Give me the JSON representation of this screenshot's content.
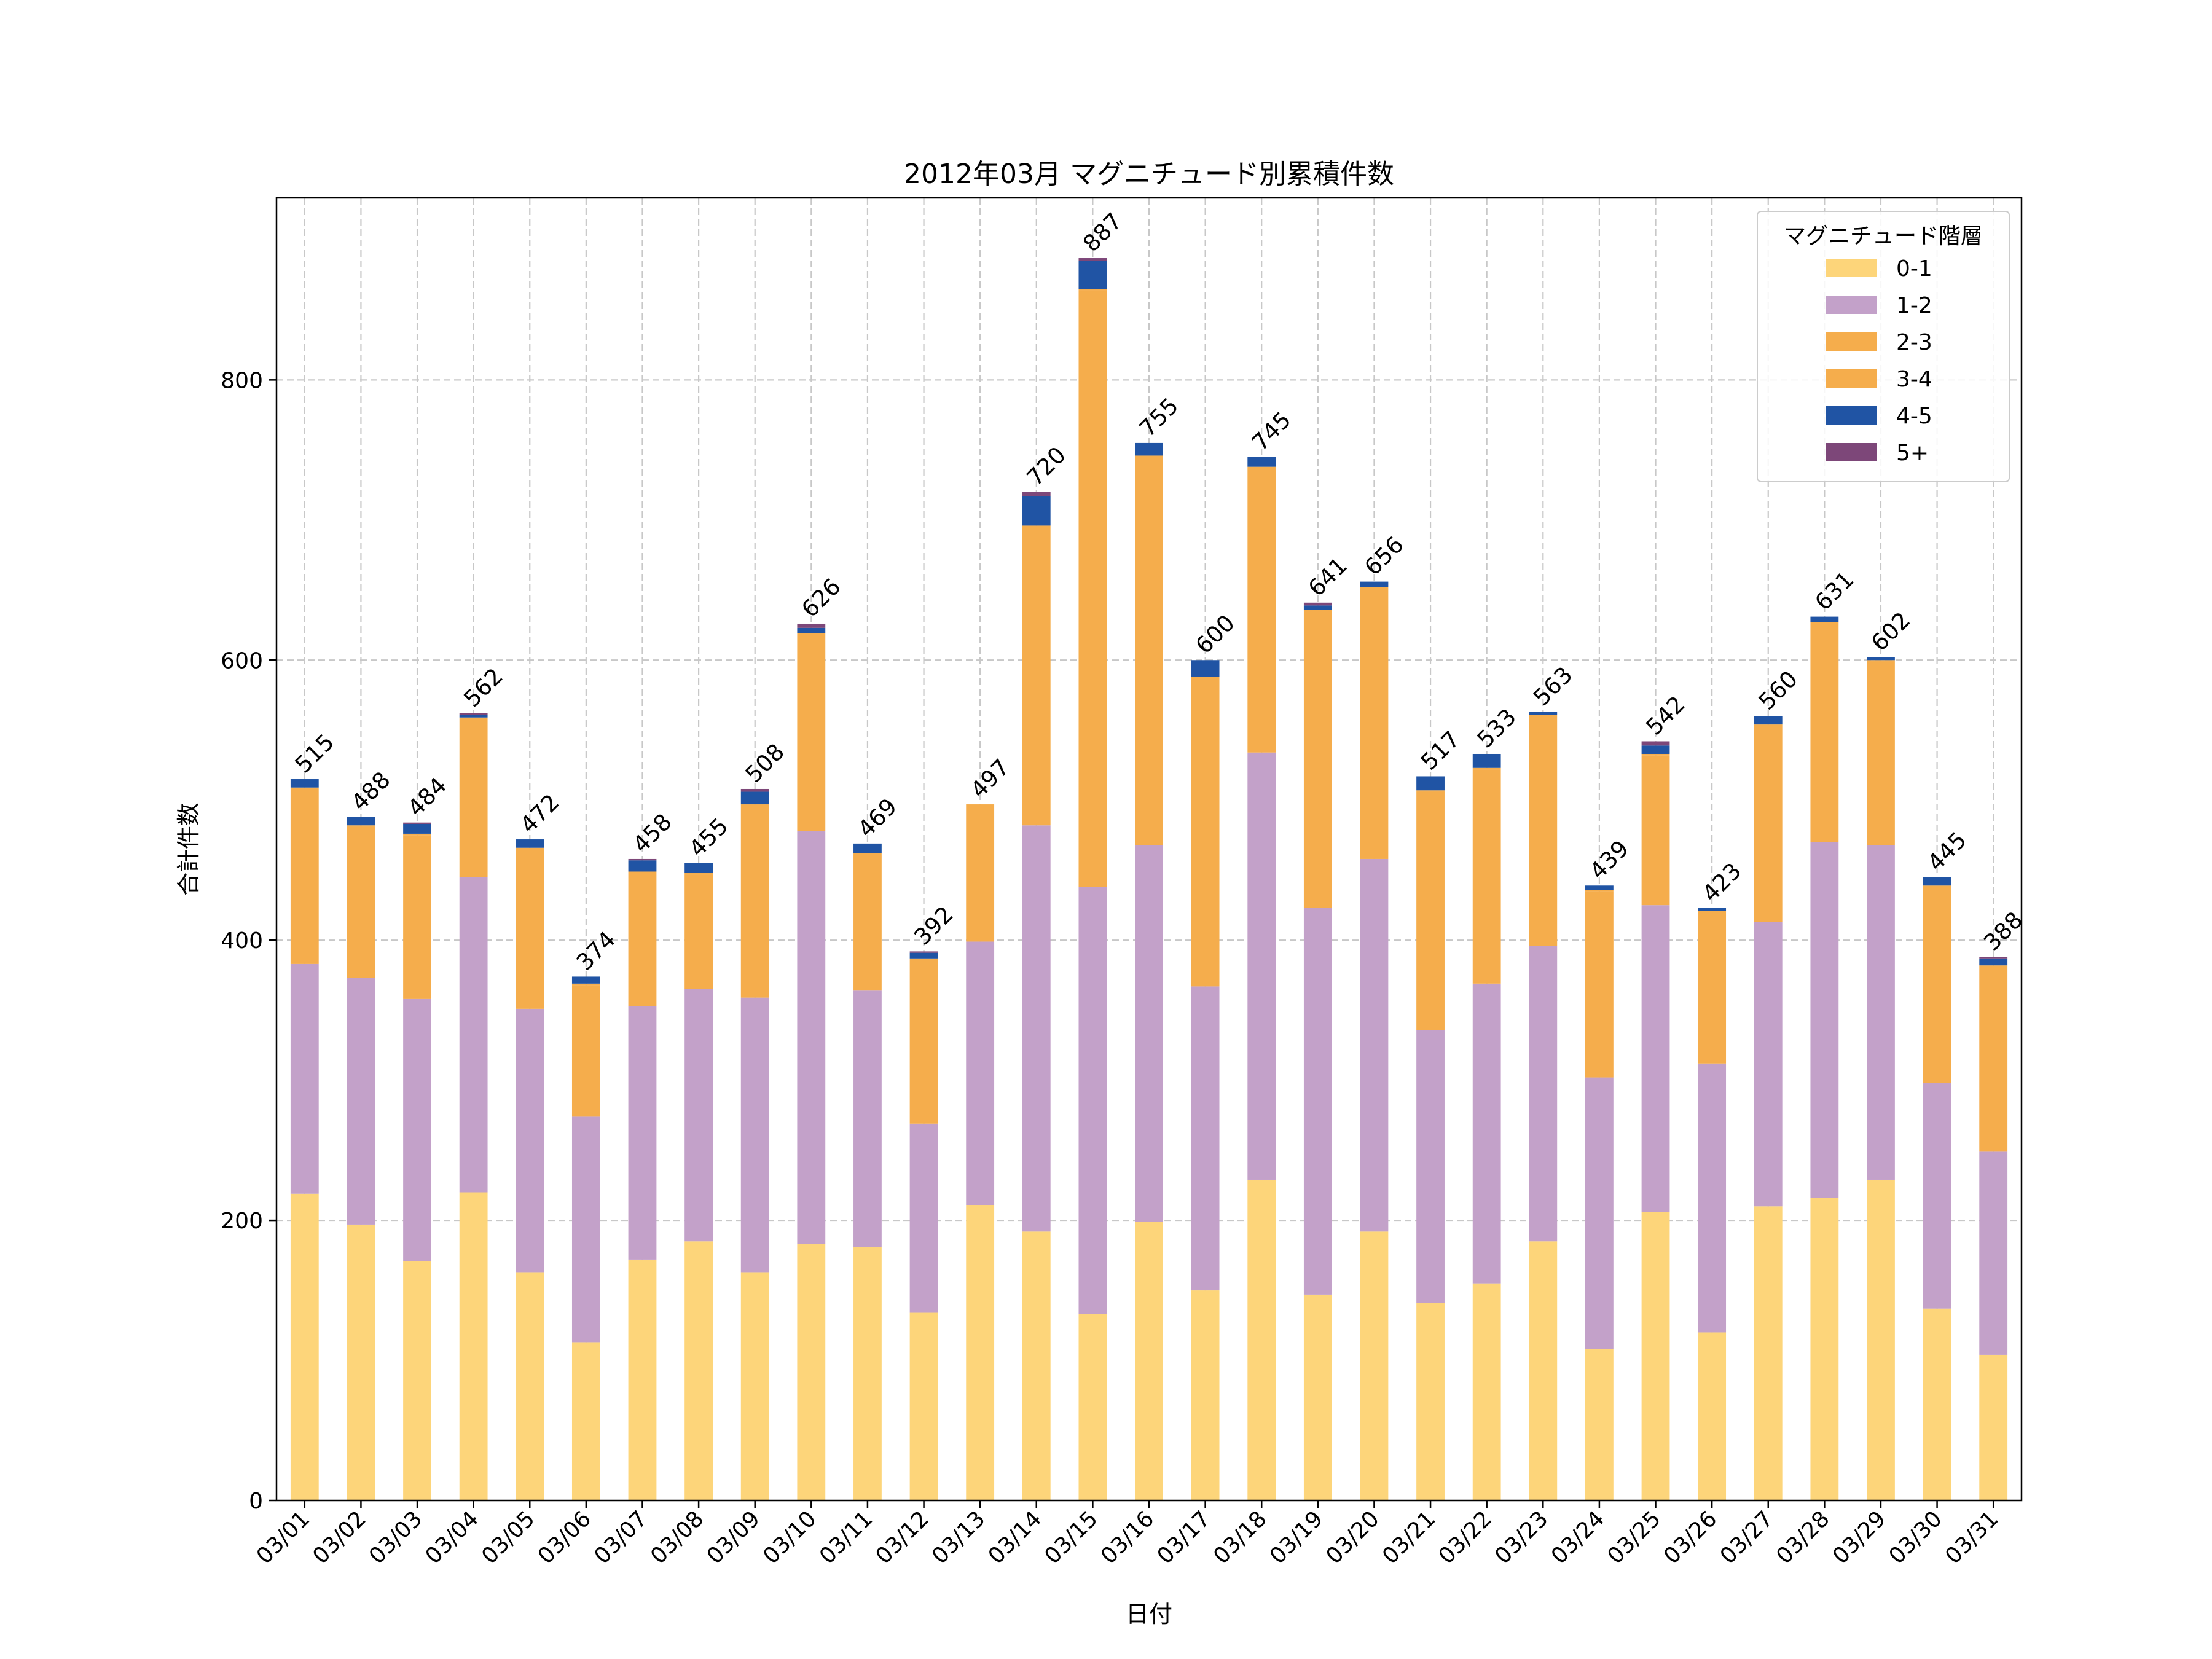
{
  "chart_data": {
    "type": "bar",
    "stacked": true,
    "title": "2012年03月 マグニチュード別累積件数",
    "xlabel": "日付",
    "ylabel": "合計件数",
    "ylim": [
      0,
      930
    ],
    "yticks": [
      0,
      200,
      400,
      600,
      800
    ],
    "grid": true,
    "legend_title": "マグニチュード階層",
    "legend_position": "top-right",
    "categories": [
      "03/01",
      "03/02",
      "03/03",
      "03/04",
      "03/05",
      "03/06",
      "03/07",
      "03/08",
      "03/09",
      "03/10",
      "03/11",
      "03/12",
      "03/13",
      "03/14",
      "03/15",
      "03/16",
      "03/17",
      "03/18",
      "03/19",
      "03/20",
      "03/21",
      "03/22",
      "03/23",
      "03/24",
      "03/25",
      "03/26",
      "03/27",
      "03/28",
      "03/29",
      "03/30",
      "03/31"
    ],
    "series": [
      {
        "name": "0-1",
        "color": "#fdd57a",
        "values": [
          219,
          197,
          171,
          220,
          163,
          113,
          172,
          185,
          163,
          183,
          181,
          134,
          211,
          192,
          133,
          199,
          150,
          229,
          147,
          192,
          141,
          155,
          185,
          108,
          206,
          120,
          210,
          216,
          229,
          137,
          104
        ]
      },
      {
        "name": "1-2",
        "color": "#c3a1c9",
        "values": [
          164,
          176,
          187,
          225,
          188,
          161,
          181,
          180,
          196,
          295,
          183,
          135,
          188,
          290,
          305,
          269,
          217,
          305,
          276,
          266,
          195,
          214,
          211,
          194,
          219,
          192,
          203,
          254,
          239,
          161,
          145
        ]
      },
      {
        "name": "2-3",
        "color": "#f5ad4c",
        "values": [
          125,
          108,
          117,
          113,
          114,
          94,
          95,
          82,
          137,
          140,
          97,
          117,
          98,
          213,
          426,
          277,
          220,
          203,
          212,
          193,
          170,
          153,
          164,
          133,
          107,
          108,
          140,
          156,
          131,
          140,
          132
        ]
      },
      {
        "name": "3-4",
        "color": "#f5ad4c",
        "values": [
          1,
          1,
          1,
          1,
          1,
          1,
          1,
          1,
          1,
          1,
          1,
          1,
          0,
          1,
          1,
          1,
          1,
          1,
          1,
          1,
          1,
          1,
          1,
          1,
          1,
          1,
          1,
          1,
          1,
          1,
          1
        ]
      },
      {
        "name": "4-5",
        "color": "#2054a4",
        "values": [
          6,
          6,
          7,
          2,
          6,
          5,
          8,
          7,
          9,
          4,
          7,
          4,
          0,
          21,
          20,
          9,
          12,
          7,
          3,
          4,
          10,
          10,
          2,
          3,
          6,
          2,
          6,
          4,
          2,
          6,
          5
        ]
      },
      {
        "name": "5+",
        "color": "#7d4779",
        "values": [
          0,
          0,
          1,
          1,
          0,
          0,
          1,
          0,
          2,
          3,
          0,
          1,
          0,
          3,
          2,
          0,
          0,
          0,
          2,
          0,
          0,
          0,
          0,
          0,
          3,
          0,
          0,
          0,
          0,
          0,
          1
        ]
      }
    ],
    "totals": [
      515,
      488,
      484,
      562,
      472,
      374,
      458,
      455,
      508,
      626,
      469,
      392,
      497,
      720,
      887,
      755,
      600,
      745,
      641,
      656,
      517,
      533,
      563,
      439,
      542,
      423,
      560,
      631,
      602,
      445,
      388
    ]
  }
}
